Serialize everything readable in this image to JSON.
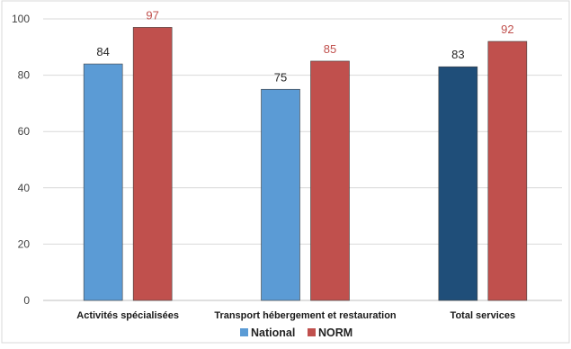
{
  "chart_data": {
    "type": "bar",
    "categories": [
      "Activités spécialisées",
      "Transport hébergement et restauration",
      "Total services"
    ],
    "series": [
      {
        "name": "National",
        "values": [
          84,
          75,
          83
        ],
        "color": "#5b9bd5",
        "highlight_color": "#1f4e79"
      },
      {
        "name": "NORM",
        "values": [
          97,
          85,
          92
        ],
        "color": "#c0504d"
      }
    ],
    "highlight_category_index": 2,
    "ylim": [
      0,
      100
    ],
    "yticks": [
      0,
      20,
      40,
      60,
      80,
      100
    ],
    "grid": true,
    "legend_position": "bottom-center",
    "data_label_colors": {
      "National": "#262626",
      "NORM": "#c0504d"
    }
  }
}
